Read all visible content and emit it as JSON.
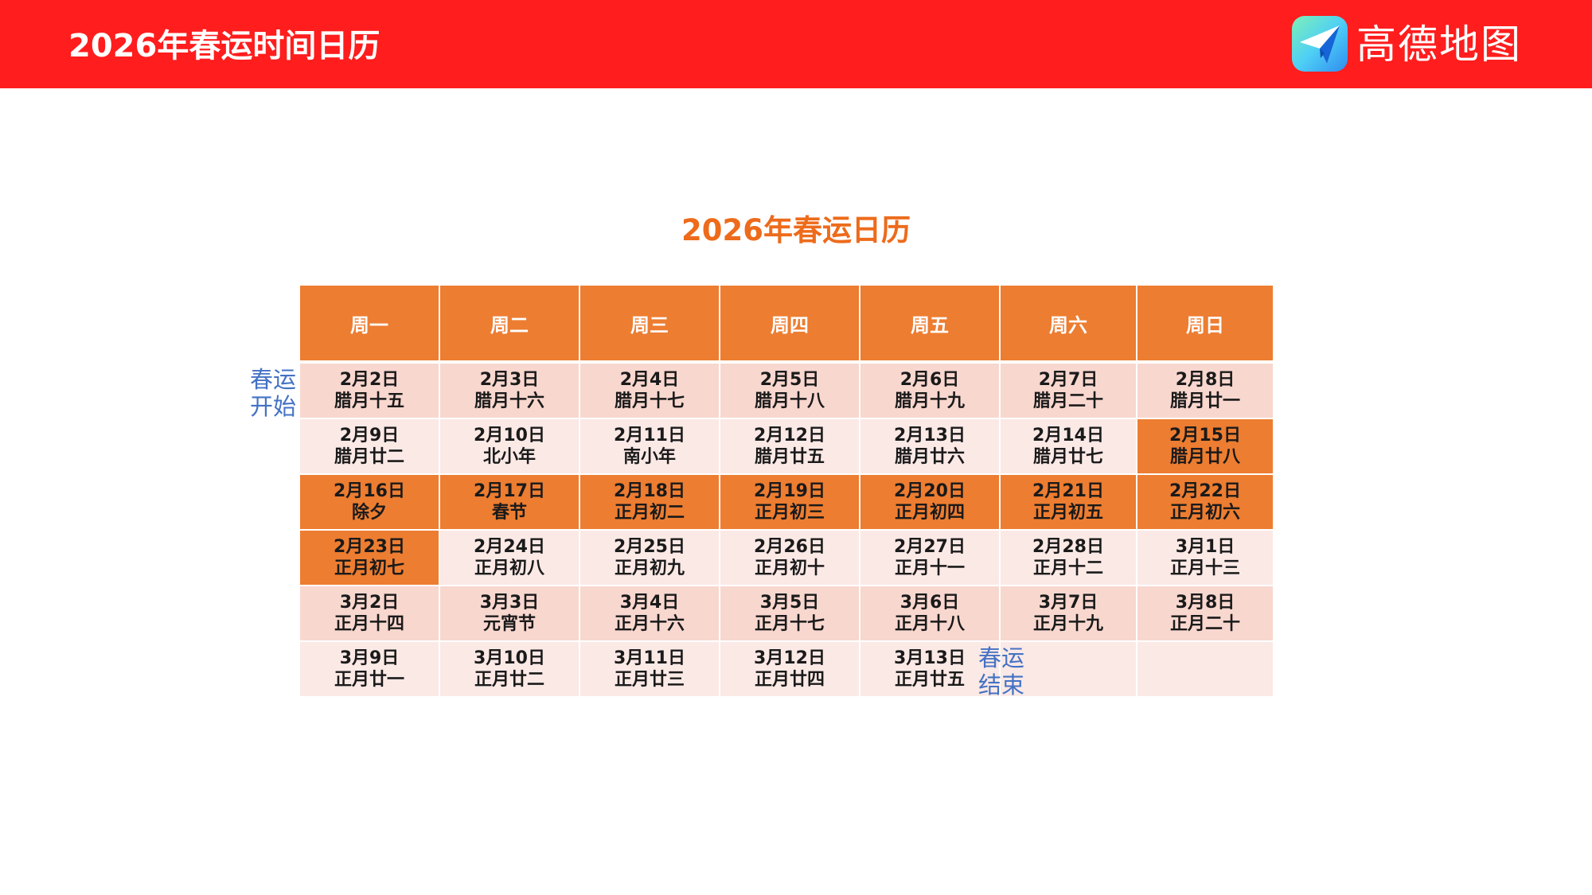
{
  "header": {
    "title": "2026年春运时间日历",
    "logo_text": "高德地图",
    "logo_icon": "paper-plane-icon"
  },
  "colors": {
    "header_bg": "#ff1d1d",
    "accent_orange": "#ed7d31",
    "row_dark": "#f8d7cf",
    "row_light": "#fbe9e6",
    "note_blue": "#4472c4",
    "title_orange": "#ed6b1b"
  },
  "calendar": {
    "title": "2026年春运日历",
    "weekdays": [
      "周一",
      "周二",
      "周三",
      "周四",
      "周五",
      "周六",
      "周日"
    ],
    "weeks": [
      [
        {
          "date": "2月2日",
          "lunar": "腊月十五"
        },
        {
          "date": "2月3日",
          "lunar": "腊月十六"
        },
        {
          "date": "2月4日",
          "lunar": "腊月十七"
        },
        {
          "date": "2月5日",
          "lunar": "腊月十八"
        },
        {
          "date": "2月6日",
          "lunar": "腊月十九"
        },
        {
          "date": "2月7日",
          "lunar": "腊月二十"
        },
        {
          "date": "2月8日",
          "lunar": "腊月廿一"
        }
      ],
      [
        {
          "date": "2月9日",
          "lunar": "腊月廿二"
        },
        {
          "date": "2月10日",
          "lunar": "北小年"
        },
        {
          "date": "2月11日",
          "lunar": "南小年"
        },
        {
          "date": "2月12日",
          "lunar": "腊月廿五"
        },
        {
          "date": "2月13日",
          "lunar": "腊月廿六"
        },
        {
          "date": "2月14日",
          "lunar": "腊月廿七"
        },
        {
          "date": "2月15日",
          "lunar": "腊月廿八",
          "highlight": true
        }
      ],
      [
        {
          "date": "2月16日",
          "lunar": "除夕",
          "highlight": true
        },
        {
          "date": "2月17日",
          "lunar": "春节",
          "highlight": true
        },
        {
          "date": "2月18日",
          "lunar": "正月初二",
          "highlight": true
        },
        {
          "date": "2月19日",
          "lunar": "正月初三",
          "highlight": true
        },
        {
          "date": "2月20日",
          "lunar": "正月初四",
          "highlight": true
        },
        {
          "date": "2月21日",
          "lunar": "正月初五",
          "highlight": true
        },
        {
          "date": "2月22日",
          "lunar": "正月初六",
          "highlight": true
        }
      ],
      [
        {
          "date": "2月23日",
          "lunar": "正月初七",
          "highlight": true
        },
        {
          "date": "2月24日",
          "lunar": "正月初八"
        },
        {
          "date": "2月25日",
          "lunar": "正月初九"
        },
        {
          "date": "2月26日",
          "lunar": "正月初十"
        },
        {
          "date": "2月27日",
          "lunar": "正月十一"
        },
        {
          "date": "2月28日",
          "lunar": "正月十二"
        },
        {
          "date": "3月1日",
          "lunar": "正月十三"
        }
      ],
      [
        {
          "date": "3月2日",
          "lunar": "正月十四"
        },
        {
          "date": "3月3日",
          "lunar": "元宵节"
        },
        {
          "date": "3月4日",
          "lunar": "正月十六"
        },
        {
          "date": "3月5日",
          "lunar": "正月十七"
        },
        {
          "date": "3月6日",
          "lunar": "正月十八"
        },
        {
          "date": "3月7日",
          "lunar": "正月十九"
        },
        {
          "date": "3月8日",
          "lunar": "正月二十"
        }
      ],
      [
        {
          "date": "3月9日",
          "lunar": "正月廿一"
        },
        {
          "date": "3月10日",
          "lunar": "正月廿二"
        },
        {
          "date": "3月11日",
          "lunar": "正月廿三"
        },
        {
          "date": "3月12日",
          "lunar": "正月廿四"
        },
        {
          "date": "3月13日",
          "lunar": "正月廿五"
        },
        {
          "date": "",
          "lunar": ""
        },
        {
          "date": "",
          "lunar": ""
        }
      ]
    ],
    "start_note": [
      "春运",
      "开始"
    ],
    "end_note": [
      "春运",
      "结束"
    ]
  }
}
